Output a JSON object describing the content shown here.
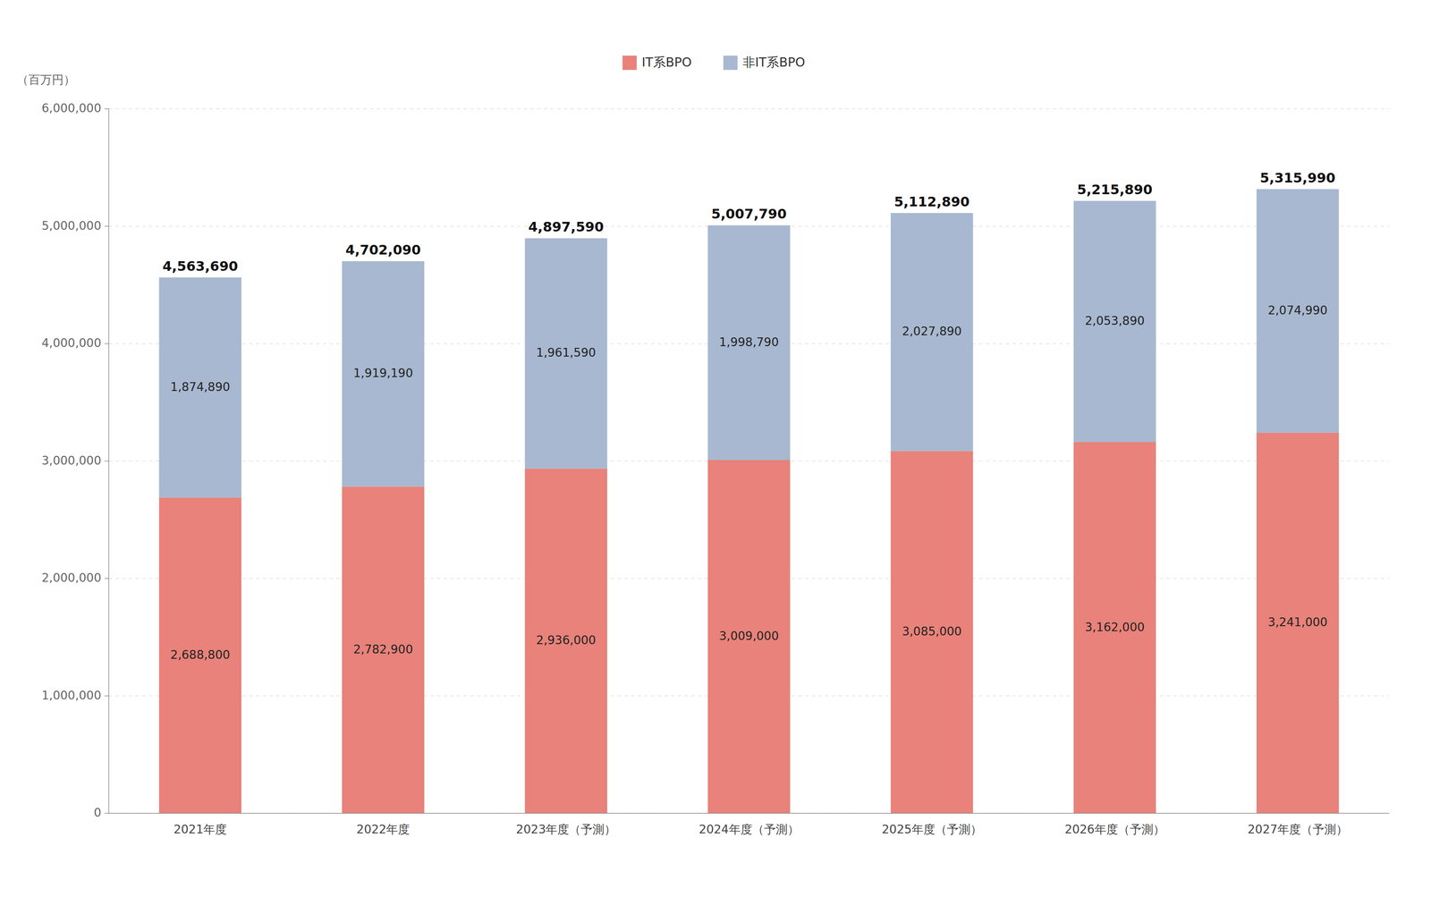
{
  "chart_data": {
    "type": "bar",
    "stacked": true,
    "grid": true,
    "legend": "top",
    "data_labels": true,
    "ylabel": "（百万円）",
    "categories": [
      "2021年度",
      "2022年度",
      "2023年度（予測）",
      "2024年度（予測）",
      "2025年度（予測）",
      "2026年度（予測）",
      "2027年度（予測）"
    ],
    "series": [
      {
        "name": "IT系BPO",
        "color": "#E8827A",
        "values": [
          2688800,
          2782900,
          2936000,
          3009000,
          3085000,
          3162000,
          3241000
        ],
        "value_labels": [
          "2,688,800",
          "2,782,900",
          "2,936,000",
          "3,009,000",
          "3,085,000",
          "3,162,000",
          "3,241,000"
        ]
      },
      {
        "name": "非IT系BPO",
        "color": "#A8B8D0",
        "values": [
          1874890,
          1919190,
          1961590,
          1998790,
          2027890,
          2053890,
          2074990
        ],
        "value_labels": [
          "1,874,890",
          "1,919,190",
          "1,961,590",
          "1,998,790",
          "2,027,890",
          "2,053,890",
          "2,074,990"
        ]
      }
    ],
    "totals": [
      4563690,
      4702090,
      4897590,
      5007790,
      5112890,
      5215890,
      5315990
    ],
    "total_labels": [
      "4,563,690",
      "4,702,090",
      "4,897,590",
      "5,007,790",
      "5,112,890",
      "5,215,890",
      "5,315,990"
    ],
    "ylim": [
      0,
      6000000
    ],
    "yticks": [
      0,
      {
        "value": 1000000,
        "label": "1,000,000"
      },
      {
        "value": 2000000,
        "label": "2,000,000"
      },
      {
        "value": 3000000,
        "label": "3,000,000"
      },
      {
        "value": 4000000,
        "label": "4,000,000"
      },
      {
        "value": 5000000,
        "label": "5,000,000"
      },
      {
        "value": 6000000,
        "label": "6,000,000"
      }
    ]
  }
}
